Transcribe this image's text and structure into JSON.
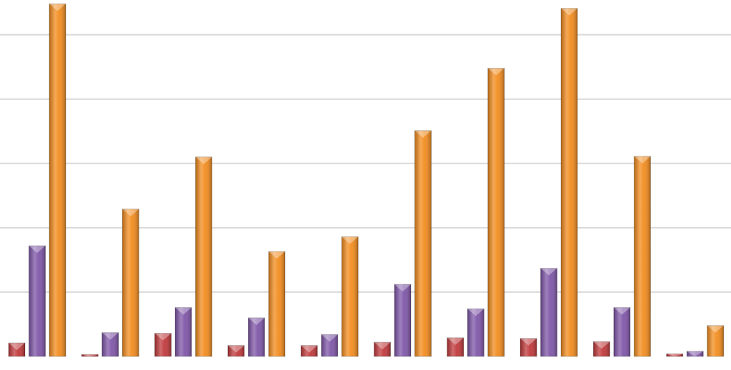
{
  "chart_data": {
    "type": "bar",
    "categories": [
      null,
      null,
      null,
      null,
      null,
      null,
      null,
      null,
      null,
      null
    ],
    "series": [
      {
        "color": "#c0393b",
        "values": [
          0.21,
          0.03,
          0.36,
          0.17,
          0.17,
          0.22,
          0.29,
          0.28,
          0.23,
          0.04
        ]
      },
      {
        "color": "#7f56a8",
        "values": [
          1.72,
          0.37,
          0.76,
          0.6,
          0.34,
          1.12,
          0.74,
          1.37,
          0.76,
          0.08
        ]
      },
      {
        "color": "#f28c1e",
        "values": [
          5.48,
          2.29,
          3.1,
          1.63,
          1.86,
          3.51,
          4.48,
          5.41,
          3.11,
          0.48
        ]
      }
    ],
    "ylim": [
      0,
      5.54
    ],
    "yticks": [
      1,
      2,
      3,
      4,
      5
    ],
    "grid": true
  }
}
